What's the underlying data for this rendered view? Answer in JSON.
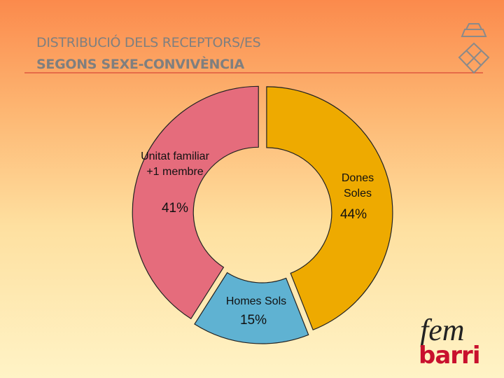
{
  "chart_data": {
    "type": "donut",
    "title": [
      "DISTRIBUCIÓ DELS RECEPTORS/ES",
      "SEGONS SEXE-CONVIVÈNCIA"
    ],
    "categories": [
      "Dones Soles",
      "Homes Sols",
      "Unitat familiar +1 membre"
    ],
    "values": [
      44,
      15,
      41
    ],
    "value_labels": [
      "44%",
      "15%",
      "41%"
    ],
    "colors": [
      "#eeaa00",
      "#5fb2d2",
      "#e56c7c"
    ]
  },
  "logo": {
    "top": "fem",
    "bottom": "barri"
  }
}
